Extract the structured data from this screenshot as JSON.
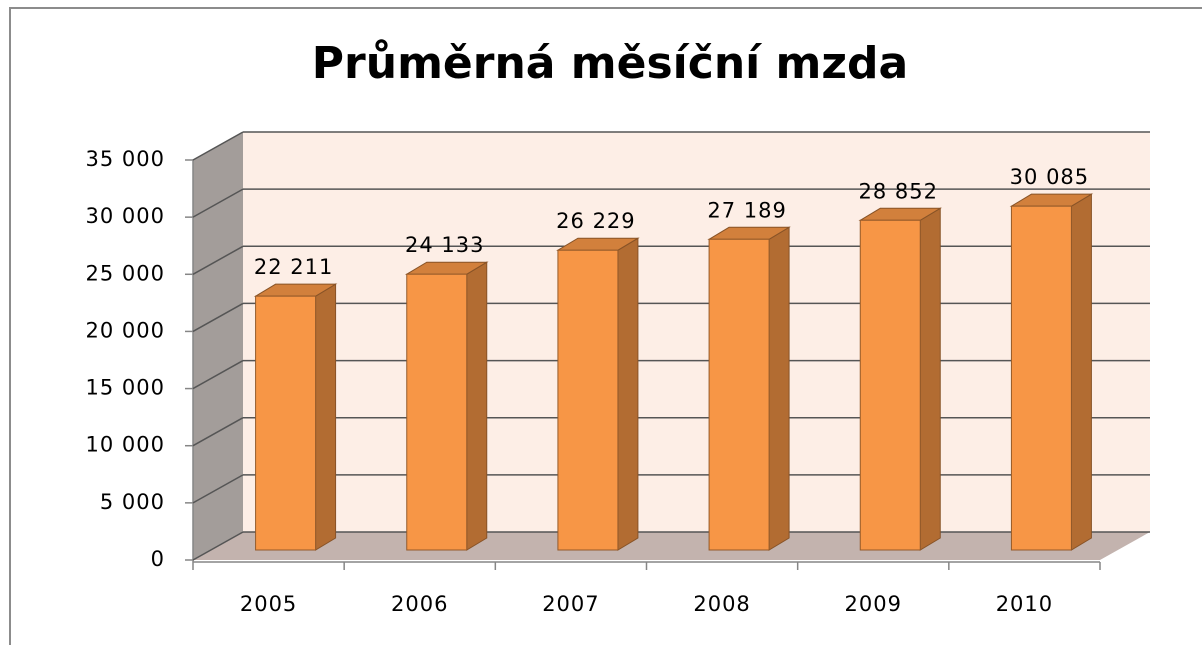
{
  "chart_data": {
    "type": "bar3d",
    "title": "Průměrná měsíční mzda",
    "categories": [
      "2005",
      "2006",
      "2007",
      "2008",
      "2009",
      "2010"
    ],
    "values": [
      22211,
      24133,
      26229,
      27189,
      28852,
      30085
    ],
    "value_labels": [
      "22 211",
      "24 133",
      "26 229",
      "27 189",
      "28 852",
      "30 085"
    ],
    "color": "#f79646",
    "ylim": [
      0,
      35000
    ],
    "yticks": [
      0,
      {
        "value": 5000,
        "label": "5 000"
      },
      {
        "value": 10000,
        "label": "10 000"
      },
      {
        "value": 15000,
        "label": "15 000"
      },
      {
        "value": 20000,
        "label": "20 000"
      },
      {
        "value": 25000,
        "label": "25 000"
      },
      {
        "value": 30000,
        "label": "30 000"
      },
      {
        "value": 35000,
        "label": "35 000"
      }
    ],
    "grid": true
  }
}
